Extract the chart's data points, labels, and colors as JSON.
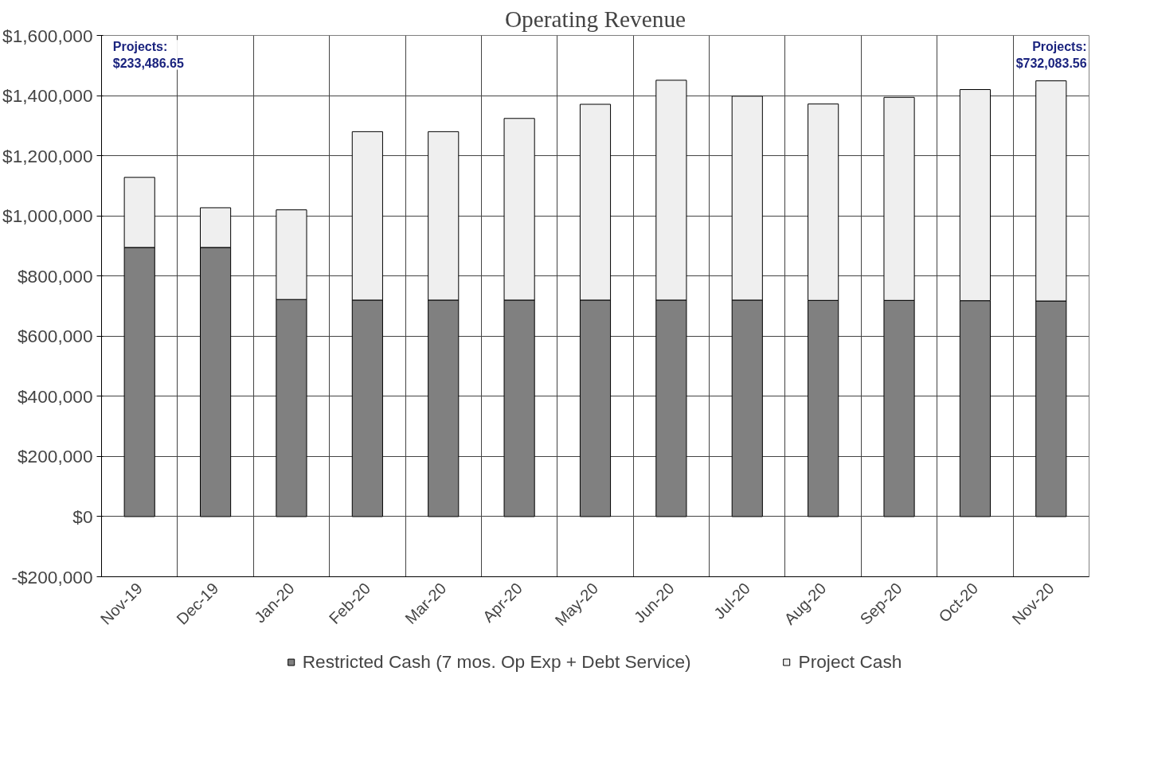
{
  "chart_data": {
    "type": "bar",
    "title": "Operating Revenue",
    "stacked": true,
    "categories": [
      "Nov-19",
      "Dec-19",
      "Jan-20",
      "Feb-20",
      "Mar-20",
      "Apr-20",
      "May-20",
      "Jun-20",
      "Jul-20",
      "Aug-20",
      "Sep-20",
      "Oct-20",
      "Nov-20"
    ],
    "series": [
      {
        "name": "Restricted Cash (7 mos. Op Exp + Debt Service)",
        "color": "#808080",
        "values": [
          895000,
          895000,
          722000,
          720000,
          720000,
          720000,
          720000,
          720000,
          720000,
          719000,
          719000,
          718000,
          717000
        ]
      },
      {
        "name": "Project Cash",
        "color": "#efefef",
        "values": [
          233000,
          132000,
          298000,
          560000,
          560000,
          604000,
          651000,
          731000,
          678000,
          653000,
          675000,
          702000,
          732000
        ]
      }
    ],
    "ylim": [
      -200000,
      1600000
    ],
    "yticks": [
      {
        "value": -200000,
        "label": "-$200,000"
      },
      {
        "value": 0,
        "label": "$0"
      },
      {
        "value": 200000,
        "label": "$200,000"
      },
      {
        "value": 400000,
        "label": "$400,000"
      },
      {
        "value": 600000,
        "label": "$600,000"
      },
      {
        "value": 800000,
        "label": "$800,000"
      },
      {
        "value": 1000000,
        "label": "$1,000,000"
      },
      {
        "value": 1200000,
        "label": "$1,200,000"
      },
      {
        "value": 1400000,
        "label": "$1,400,000"
      },
      {
        "value": 1600000,
        "label": "$1,600,000"
      }
    ],
    "grid": true,
    "legend": "bottom",
    "annotations": [
      "Projects:\n$233,486.65",
      "Projects:\n$732,083.56"
    ]
  }
}
